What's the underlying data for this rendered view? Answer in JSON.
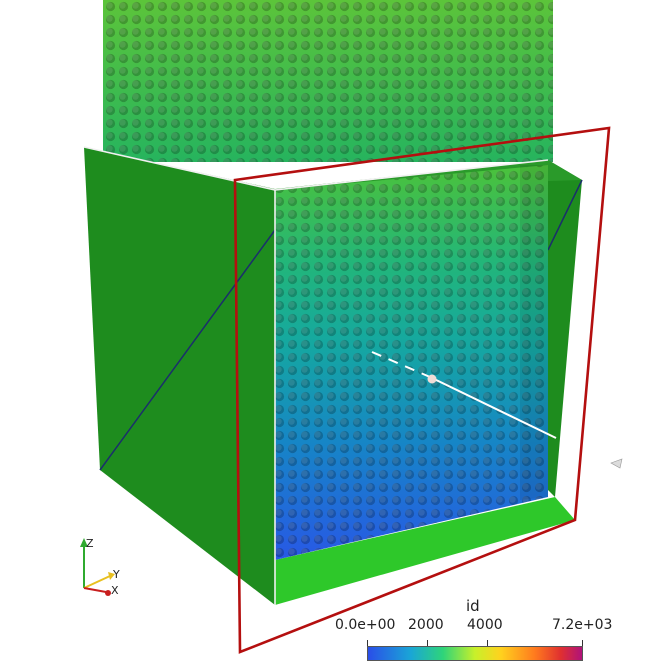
{
  "scene": {
    "colors": {
      "box_fill": "#1e8c1e",
      "box_fill_light": "#2ec82a",
      "plane_frame": "#b40f0f",
      "edge_white": "#f0f0f0",
      "diagonal": "#1a2f6b"
    }
  },
  "axes": {
    "z_label": "Z",
    "y_label": "Y",
    "x_label": "X"
  },
  "colorbar": {
    "title": "id",
    "labels": [
      "0.0e+00",
      "2000",
      "4000",
      "7.2e+03"
    ],
    "range": [
      0,
      7200
    ],
    "colormap": [
      "#2a4ee8",
      "#1aa6d6",
      "#2ed47a",
      "#c8f02a",
      "#ffd21e",
      "#ff7a1e",
      "#e03030",
      "#b0127a"
    ]
  }
}
